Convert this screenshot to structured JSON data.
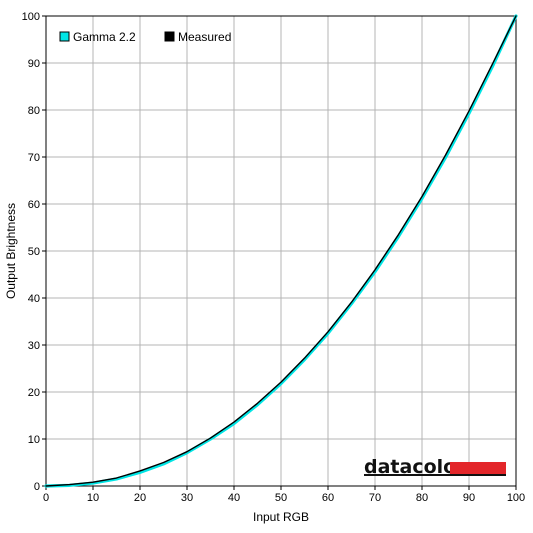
{
  "chart_data": {
    "type": "line",
    "title": "",
    "xlabel": "Input RGB",
    "ylabel": "Output Brightness",
    "xlim": [
      0,
      100
    ],
    "ylim": [
      0,
      100
    ],
    "xticks": [
      0,
      10,
      20,
      30,
      40,
      50,
      60,
      70,
      80,
      90,
      100
    ],
    "yticks": [
      0,
      10,
      20,
      30,
      40,
      50,
      60,
      70,
      80,
      90,
      100
    ],
    "grid": true,
    "legend_position": "top-left",
    "series": [
      {
        "name": "Gamma 2.2",
        "color": "#00e5e5",
        "x": [
          0,
          5,
          10,
          15,
          20,
          25,
          30,
          35,
          40,
          45,
          50,
          55,
          60,
          65,
          70,
          75,
          80,
          85,
          90,
          95,
          100
        ],
        "y": [
          0,
          0.14,
          0.63,
          1.5,
          2.9,
          4.7,
          7.1,
          10.0,
          13.3,
          17.3,
          21.8,
          26.9,
          32.5,
          38.8,
          45.6,
          53.1,
          61.2,
          69.9,
          79.3,
          89.3,
          100
        ]
      },
      {
        "name": "Measured",
        "color": "#000000",
        "x": [
          0,
          5,
          10,
          15,
          20,
          25,
          30,
          35,
          40,
          45,
          50,
          55,
          60,
          65,
          70,
          75,
          80,
          85,
          90,
          95,
          100
        ],
        "y": [
          0,
          0.3,
          0.8,
          1.7,
          3.2,
          5.0,
          7.3,
          10.2,
          13.6,
          17.6,
          22.1,
          27.2,
          32.8,
          39.1,
          46.0,
          53.5,
          61.6,
          70.4,
          79.8,
          89.8,
          100
        ]
      }
    ],
    "watermark": "datacolor"
  }
}
